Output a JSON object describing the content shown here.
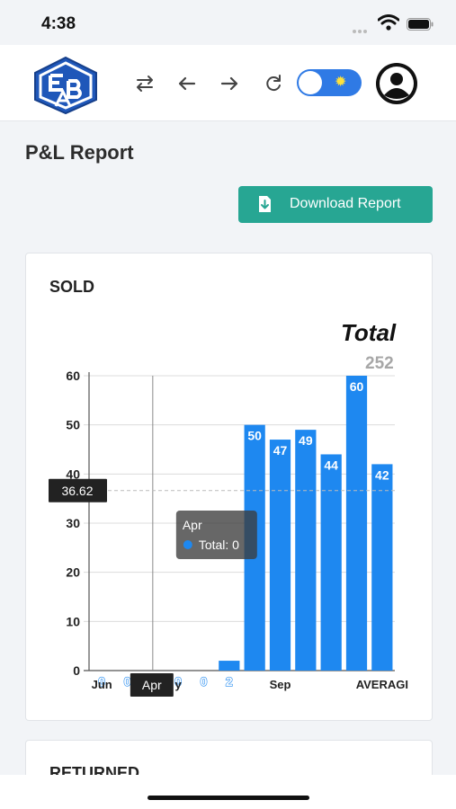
{
  "status_bar": {
    "time": "4:38"
  },
  "header": {
    "logo": "EBA-logo",
    "icons": [
      "swap-icon",
      "arrow-left-icon",
      "arrow-right-icon",
      "refresh-icon"
    ],
    "theme_toggle": {
      "state": "on",
      "icon": "sun-icon",
      "color": "#2f7ae5"
    },
    "avatar": "user-avatar-icon"
  },
  "page": {
    "title": "P&L Report",
    "download_label": "Download Report",
    "accent_color": "#27a693"
  },
  "sold_card": {
    "title": "SOLD",
    "total_label": "Total",
    "total_value": "252",
    "crosshair_x_label": "Apr",
    "average_line_label": "36.62",
    "tooltip": {
      "title": "Apr",
      "text": "Total: 0"
    }
  },
  "returned_card": {
    "title": "RETURNED"
  },
  "chart_data": {
    "type": "bar",
    "categories": [
      "Jun",
      "",
      "Apr",
      "May",
      "",
      "",
      "",
      "Sep",
      "",
      "",
      "",
      "AVERAGE"
    ],
    "x_tick_labels": [
      "Jun",
      "",
      "",
      "y",
      "",
      "",
      "",
      "Sep",
      "",
      "",
      "",
      "AVERAGI"
    ],
    "data_labels": [
      "0",
      "0",
      "0",
      "0",
      "0",
      "2",
      "50",
      "47",
      "49",
      "44",
      "60",
      "42"
    ],
    "series": [
      {
        "values": [
          0,
          0,
          0,
          0,
          0,
          2,
          50,
          47,
          49,
          44,
          60,
          42
        ],
        "color": "#1e88f0"
      }
    ],
    "average_line": 36.62,
    "crosshair_category": "Apr",
    "yticks": [
      0,
      10,
      20,
      30,
      40,
      50,
      60
    ],
    "ylim": [
      0,
      60
    ],
    "grid": true,
    "legend": "none"
  }
}
